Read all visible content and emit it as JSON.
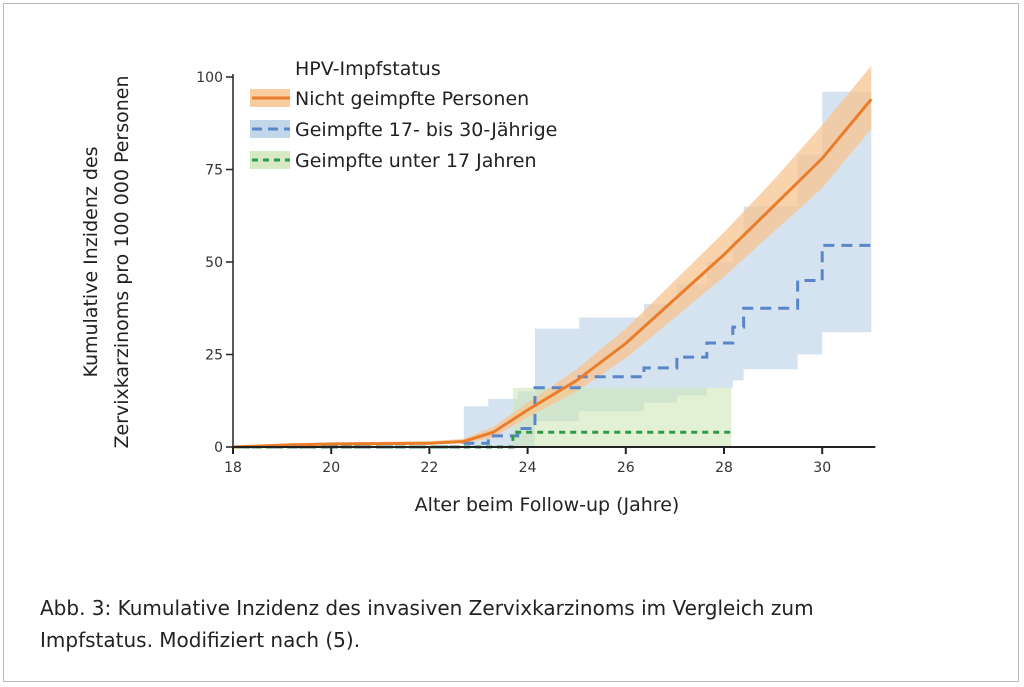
{
  "chart_data": {
    "type": "line",
    "title": "",
    "xlabel": "Alter beim Follow-up (Jahre)",
    "ylabel_lines": [
      "Kumulative Inzidenz des",
      "Zervixkarzinoms pro 100 000 Personen"
    ],
    "xlim": [
      18,
      31
    ],
    "ylim": [
      0,
      100
    ],
    "xticks": [
      18,
      20,
      22,
      24,
      26,
      28,
      30
    ],
    "yticks": [
      0,
      25,
      50,
      75,
      100
    ],
    "legend_title": "HPV-Impfstatus",
    "legend_position": "top-left",
    "series": [
      {
        "name": "Nicht geimpfte Personen",
        "color": "#ea7d2b",
        "band_color": "#f7c48f",
        "style": "solid",
        "step": false,
        "x": [
          18,
          19,
          20,
          21,
          22,
          22.7,
          23.3,
          24,
          25,
          26,
          27,
          28,
          29,
          30,
          31
        ],
        "y": [
          0,
          0.5,
          0.8,
          0.9,
          1,
          1.5,
          4,
          10,
          18,
          28,
          40,
          52,
          65,
          78,
          94
        ],
        "lower": [
          0,
          0.2,
          0.4,
          0.5,
          0.6,
          1,
          2.5,
          8,
          15,
          24,
          35,
          46,
          58,
          70,
          86
        ],
        "upper": [
          0,
          0.9,
          1.3,
          1.4,
          1.6,
          2.2,
          5.5,
          12,
          21,
          32,
          45,
          58,
          72,
          87,
          103
        ]
      },
      {
        "name": "Geimpfte 17- bis 30-Jährige",
        "color": "#5a86c9",
        "band_color": "#b9d0e6",
        "style": "dashed",
        "step": true,
        "x": [
          18,
          22.7,
          23.2,
          23.8,
          24.15,
          25.05,
          26.37,
          27.04,
          27.65,
          28.18,
          28.4,
          29.5,
          30,
          31
        ],
        "y": [
          0,
          1,
          3,
          5,
          16,
          19,
          21.4,
          24.3,
          28.1,
          32.4,
          37.5,
          45,
          54.5,
          54.5
        ],
        "lower": [
          0,
          0,
          0,
          0,
          7,
          9.7,
          12,
          14,
          16,
          18,
          21,
          25,
          31,
          31
        ],
        "upper": [
          0,
          11,
          13,
          15,
          32,
          35,
          38.6,
          44,
          50,
          56,
          65,
          79,
          96,
          96
        ]
      },
      {
        "name": "Geimpfte unter 17 Jahren",
        "color": "#2e9a4a",
        "band_color": "#cfe6b8",
        "style": "dotted",
        "step": true,
        "x": [
          18,
          23.7,
          28.15
        ],
        "y": [
          0,
          4,
          4
        ],
        "lower": [
          0,
          0,
          0
        ],
        "upper": [
          0,
          16,
          16
        ]
      }
    ]
  },
  "caption": {
    "line1": "Abb. 3: Kumulative Inzidenz des invasiven Zervixkarzinoms im Vergleich zum",
    "line2": "Impfstatus. Modifiziert nach (5)."
  }
}
